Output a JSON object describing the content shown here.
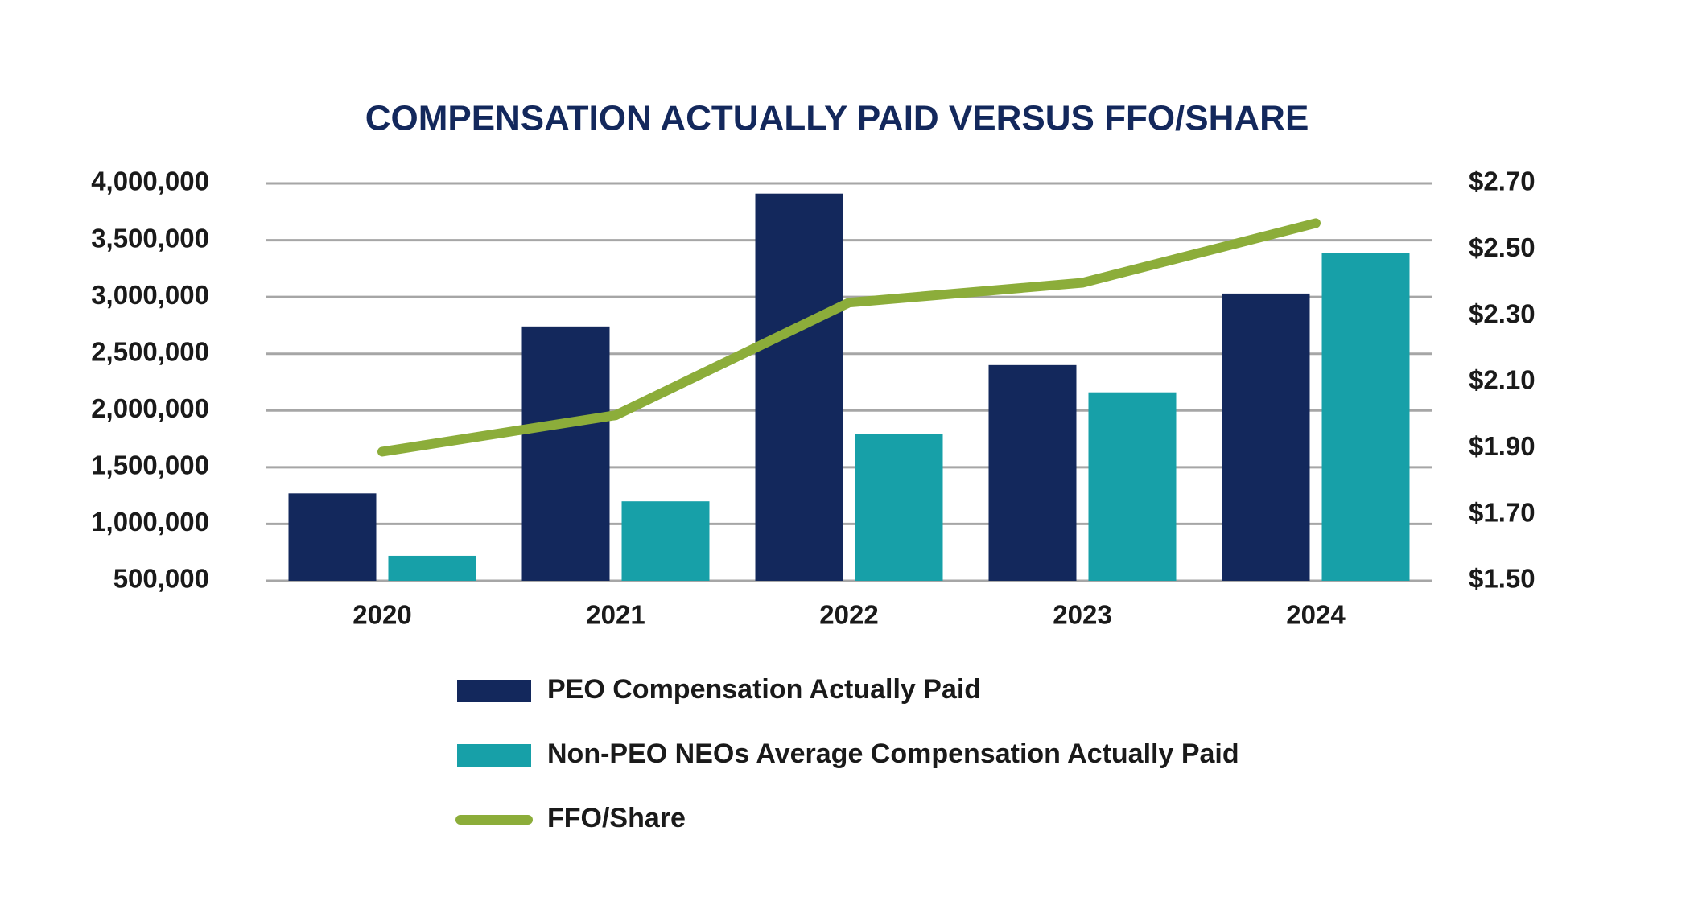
{
  "chart_data": {
    "type": "bar+line",
    "title": "COMPENSATION ACTUALLY PAID VERSUS FFO/SHARE",
    "categories": [
      "2020",
      "2021",
      "2022",
      "2023",
      "2024"
    ],
    "series": [
      {
        "name": "PEO Compensation Actually Paid",
        "type": "bar",
        "color": "#13285c",
        "values": [
          1270000,
          2740000,
          3910000,
          2400000,
          3030000
        ]
      },
      {
        "name": "Non-PEO NEOs Average Compensation Actually Paid",
        "type": "bar",
        "color": "#17a0a8",
        "values": [
          720000,
          1200000,
          1790000,
          2160000,
          3390000
        ]
      },
      {
        "name": "FFO/Share",
        "type": "line",
        "axis": "y2",
        "color": "#8cad3a",
        "values": [
          1.89,
          2.0,
          2.34,
          2.4,
          2.58
        ]
      }
    ],
    "ylim": [
      500000,
      4000000
    ],
    "yticks": [
      {
        "value": 500000,
        "label": "500,000"
      },
      {
        "value": 1000000,
        "label": "1,000,000"
      },
      {
        "value": 1500000,
        "label": "1,500,000"
      },
      {
        "value": 2000000,
        "label": "2,000,000"
      },
      {
        "value": 2500000,
        "label": "2,500,000"
      },
      {
        "value": 3000000,
        "label": "3,000,000"
      },
      {
        "value": 3500000,
        "label": "3,500,000"
      },
      {
        "value": 4000000,
        "label": "4,000,000"
      }
    ],
    "y2lim": [
      1.5,
      2.7
    ],
    "y2ticks": [
      {
        "value": 1.5,
        "label": "$1.50"
      },
      {
        "value": 1.7,
        "label": "$1.70"
      },
      {
        "value": 1.9,
        "label": "$1.90"
      },
      {
        "value": 2.1,
        "label": "$2.10"
      },
      {
        "value": 2.3,
        "label": "$2.30"
      },
      {
        "value": 2.5,
        "label": "$2.50"
      },
      {
        "value": 2.7,
        "label": "$2.70"
      }
    ],
    "grid": true,
    "legend": "bottom"
  }
}
